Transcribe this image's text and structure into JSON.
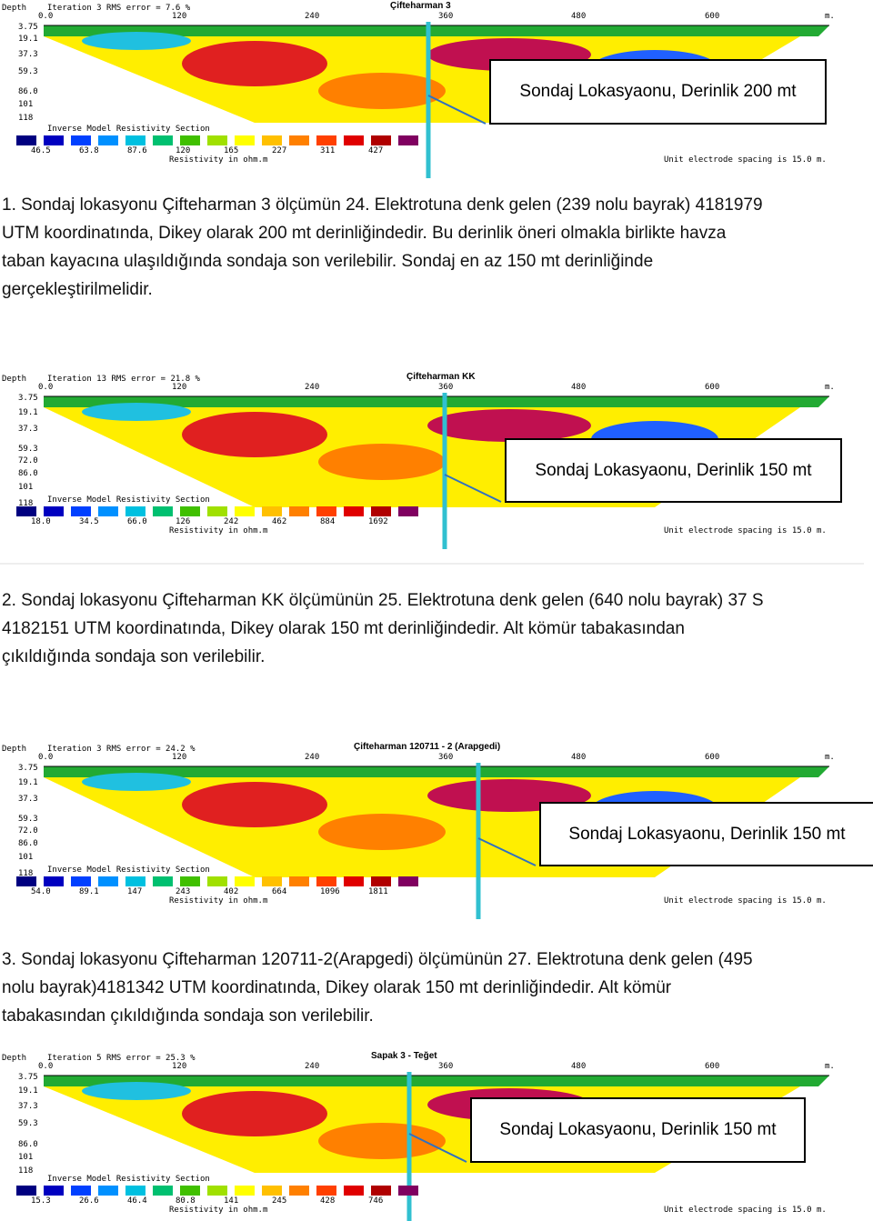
{
  "panels": [
    {
      "depth_label": "Depth",
      "iteration": "Iteration 3 RMS error = 7.6 %",
      "title": "Çifteharman 3",
      "x_ticks": [
        "0.0",
        "120",
        "240",
        "360",
        "480",
        "600",
        "m."
      ],
      "depths": [
        "3.75",
        "19.1",
        "37.3",
        "59.3",
        "86.0",
        "101",
        "118"
      ],
      "section_label": "Inverse Model Resistivity Section",
      "legend": [
        "46.5",
        "63.8",
        "87.6",
        "120",
        "165",
        "227",
        "311",
        "427"
      ],
      "legend_unit": "Resistivity in ohm.m",
      "spacing_note": "Unit electrode spacing is 15.0 m.",
      "callout": "Sondaj Lokasyaonu, Derinlik 200 mt"
    },
    {
      "depth_label": "Depth",
      "iteration": "Iteration 13 RMS error = 21.8 %",
      "title": "Çifteharman KK",
      "x_ticks": [
        "0.0",
        "120",
        "240",
        "360",
        "480",
        "600",
        "m."
      ],
      "depths": [
        "3.75",
        "19.1",
        "37.3",
        "59.3",
        "72.0",
        "86.0",
        "101",
        "118"
      ],
      "section_label": "Inverse Model Resistivity Section",
      "legend": [
        "18.0",
        "34.5",
        "66.0",
        "126",
        "242",
        "462",
        "884",
        "1692"
      ],
      "legend_unit": "Resistivity in ohm.m",
      "spacing_note": "Unit electrode spacing is 15.0 m.",
      "callout": "Sondaj Lokasyaonu, Derinlik 150 mt"
    },
    {
      "depth_label": "Depth",
      "iteration": "Iteration 3 RMS error = 24.2 %",
      "title": "Çifteharman 120711 - 2 (Arapgedi)",
      "x_ticks": [
        "0.0",
        "120",
        "240",
        "360",
        "480",
        "600",
        "m."
      ],
      "depths": [
        "3.75",
        "19.1",
        "37.3",
        "59.3",
        "72.0",
        "86.0",
        "101",
        "118"
      ],
      "section_label": "Inverse Model Resistivity Section",
      "legend": [
        "54.0",
        "89.1",
        "147",
        "243",
        "402",
        "664",
        "1096",
        "1811"
      ],
      "legend_unit": "Resistivity in ohm.m",
      "spacing_note": "Unit electrode spacing is 15.0 m.",
      "callout": "Sondaj Lokasyaonu, Derinlik 150 mt"
    },
    {
      "depth_label": "Depth",
      "iteration": "Iteration 5 RMS error = 25.3 %",
      "title": "Sapak 3 - Teğet",
      "x_ticks": [
        "0.0",
        "120",
        "240",
        "360",
        "480",
        "600",
        "m."
      ],
      "depths": [
        "3.75",
        "19.1",
        "37.3",
        "59.3",
        "86.0",
        "101",
        "118"
      ],
      "section_label": "Inverse Model Resistivity Section",
      "legend": [
        "15.3",
        "26.6",
        "46.4",
        "80.8",
        "141",
        "245",
        "428",
        "746"
      ],
      "legend_unit": "Resistivity in ohm.m",
      "spacing_note": "Unit electrode spacing is 15.0 m.",
      "callout": "Sondaj Lokasyaonu, Derinlik 150 mt"
    }
  ],
  "paragraphs": [
    [
      "1. Sondaj lokasyonu Çifteharman 3 ölçümün 24. Elektrotuna denk gelen (239 nolu bayrak)  4181979",
      "UTM koordinatında, Dikey olarak 200 mt derinliğindedir. Bu derinlik öneri olmakla birlikte havza",
      "taban kayacına ulaşıldığında sondaja son verilebilir. Sondaj en az 150 mt derinliğinde",
      "gerçekleştirilmelidir."
    ],
    [
      "2. Sondaj lokasyonu Çifteharman KK ölçümünün 25. Elektrotuna denk gelen (640 nolu bayrak) 37 S",
      "4182151 UTM koordinatında, Dikey olarak 150 mt derinliğindedir. Alt kömür tabakasından",
      "çıkıldığında sondaja son verilebilir."
    ],
    [
      "3. Sondaj lokasyonu  Çifteharman 120711-2(Arapgedi) ölçümünün 27. Elektrotuna denk gelen (495",
      "nolu bayrak)4181342  UTM koordinatında, Dikey olarak 150 mt derinliğindedir. Alt kömür",
      "tabakasından çıkıldığında sondaja son verilebilir."
    ]
  ]
}
